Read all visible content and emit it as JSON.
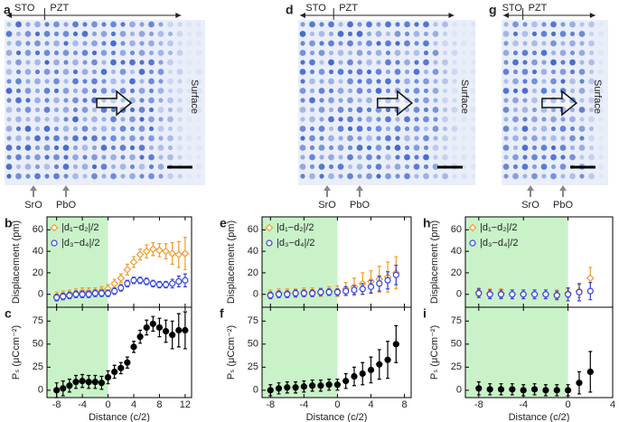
{
  "images": [
    {
      "letter": "a",
      "top_labels": [
        "STO",
        "PZT"
      ],
      "bottom_labels": [
        "SrO",
        "PbO"
      ],
      "surface": "Surface"
    },
    {
      "letter": "d",
      "top_labels": [
        "STO",
        "PZT"
      ],
      "bottom_labels": [
        "SrO",
        "PbO"
      ],
      "surface": "Surface"
    },
    {
      "letter": "g",
      "top_labels": [
        "STO",
        "PZT"
      ],
      "bottom_labels": [
        "SrO",
        "PbO"
      ],
      "surface": "Surface"
    }
  ],
  "chart_data": [
    {
      "type": "errorbar",
      "letter": "b",
      "ylabel": "Displacement (pm)",
      "highlight_to": 0,
      "highlight_color": "#c9f2c9",
      "x": [
        -8,
        -7,
        -6,
        -5,
        -4,
        -3,
        -2,
        -1,
        0,
        1,
        2,
        3,
        4,
        5,
        6,
        7,
        8,
        9,
        10,
        11,
        12
      ],
      "series": [
        {
          "name": "|d₁−d₂|/2",
          "color": "#f39a2b",
          "marker": "diamond",
          "filled": false,
          "values": [
            -2,
            -1,
            0,
            1,
            2,
            2,
            2,
            3,
            5,
            10,
            15,
            23,
            30,
            37,
            40,
            42,
            41,
            40,
            38,
            37,
            38
          ],
          "errors": [
            4,
            4,
            4,
            4,
            4,
            4,
            4,
            4,
            4,
            4,
            4,
            5,
            5,
            5,
            6,
            6,
            6,
            7,
            10,
            12,
            15
          ]
        },
        {
          "name": "|d₃−d₄|/2",
          "color": "#3344dd",
          "marker": "circle",
          "filled": false,
          "values": [
            -3,
            -2,
            -1,
            0,
            0,
            0,
            1,
            1,
            1,
            3,
            6,
            10,
            13,
            13,
            12,
            10,
            9,
            9,
            10,
            12,
            13
          ],
          "errors": [
            3,
            3,
            3,
            3,
            3,
            3,
            3,
            3,
            3,
            3,
            3,
            3,
            3,
            3,
            3,
            3,
            3,
            3,
            4,
            5,
            6
          ]
        }
      ],
      "xlim": [
        -9.5,
        13
      ],
      "xticks": [
        -8,
        -4,
        0,
        4,
        8,
        12
      ],
      "ylim": [
        -12,
        72
      ],
      "yticks": [
        0,
        20,
        40,
        60
      ]
    },
    {
      "type": "errorbar",
      "letter": "c",
      "ylabel": "Pₛ (μCcm⁻²)",
      "xlabel": "Distance (c/2)",
      "highlight_to": 0,
      "highlight_color": "#c9f2c9",
      "x": [
        -8,
        -7,
        -6,
        -5,
        -4,
        -3,
        -2,
        -1,
        0,
        1,
        2,
        3,
        4,
        5,
        6,
        7,
        8,
        9,
        10,
        11,
        12
      ],
      "series": [
        {
          "color": "#000000",
          "marker": "circle",
          "filled": true,
          "values": [
            0,
            2,
            5,
            9,
            10,
            9,
            9,
            8,
            14,
            20,
            24,
            30,
            47,
            58,
            68,
            72,
            68,
            64,
            60,
            65,
            65
          ],
          "errors": [
            8,
            8,
            7,
            7,
            7,
            7,
            7,
            7,
            7,
            7,
            6,
            6,
            6,
            7,
            8,
            8,
            10,
            12,
            15,
            18,
            20
          ]
        }
      ],
      "xlim": [
        -9.5,
        13
      ],
      "xticks": [
        -8,
        -4,
        0,
        4,
        8,
        12
      ],
      "ylim": [
        -8,
        90
      ],
      "yticks": [
        0,
        25,
        50,
        75
      ]
    },
    {
      "type": "errorbar",
      "letter": "e",
      "ylabel": "Displacement (pm)",
      "highlight_to": 0,
      "highlight_color": "#c9f2c9",
      "x": [
        -8,
        -7,
        -6,
        -5,
        -4,
        -3,
        -2,
        -1,
        0,
        1,
        2,
        3,
        4,
        5,
        6,
        7
      ],
      "series": [
        {
          "name": "|d₁−d₂|/2",
          "color": "#f39a2b",
          "marker": "diamond",
          "filled": false,
          "values": [
            0,
            1,
            1,
            1,
            2,
            2,
            2,
            3,
            3,
            5,
            7,
            10,
            12,
            14,
            16,
            20
          ],
          "errors": [
            4,
            4,
            4,
            4,
            4,
            4,
            4,
            4,
            5,
            6,
            8,
            10,
            10,
            12,
            14,
            15
          ]
        },
        {
          "name": "|d₃−d₄|/2",
          "color": "#3344dd",
          "marker": "circle",
          "filled": false,
          "values": [
            -1,
            0,
            0,
            1,
            1,
            1,
            2,
            2,
            2,
            3,
            4,
            5,
            7,
            10,
            13,
            18
          ],
          "errors": [
            3,
            3,
            3,
            3,
            3,
            3,
            3,
            3,
            3,
            4,
            4,
            5,
            6,
            7,
            8,
            9
          ]
        }
      ],
      "xlim": [
        -9,
        8.8
      ],
      "xticks": [
        -8,
        -4,
        0,
        4,
        8
      ],
      "ylim": [
        -12,
        72
      ],
      "yticks": [
        0,
        20,
        40,
        60
      ]
    },
    {
      "type": "errorbar",
      "letter": "f",
      "ylabel": "Pₛ (μCcm⁻²)",
      "xlabel": "Distance (c/2)",
      "highlight_to": 0,
      "highlight_color": "#c9f2c9",
      "x": [
        -8,
        -7,
        -6,
        -5,
        -4,
        -3,
        -2,
        -1,
        0,
        1,
        2,
        3,
        4,
        5,
        6,
        7
      ],
      "series": [
        {
          "color": "#000000",
          "marker": "circle",
          "filled": true,
          "values": [
            0,
            2,
            3,
            3,
            4,
            5,
            5,
            6,
            6,
            10,
            15,
            18,
            22,
            28,
            33,
            50
          ],
          "errors": [
            6,
            6,
            6,
            6,
            6,
            6,
            6,
            6,
            6,
            8,
            10,
            12,
            14,
            16,
            20,
            20
          ]
        }
      ],
      "xlim": [
        -9,
        8.8
      ],
      "xticks": [
        -8,
        -4,
        0,
        4,
        8
      ],
      "ylim": [
        -8,
        90
      ],
      "yticks": [
        0,
        25,
        50,
        75
      ]
    },
    {
      "type": "errorbar",
      "letter": "h",
      "ylabel": "Displacement (pm)",
      "highlight_to": 0,
      "highlight_color": "#c9f2c9",
      "x": [
        -8,
        -7,
        -6,
        -5,
        -4,
        -3,
        -2,
        -1,
        0,
        1,
        2
      ],
      "series": [
        {
          "name": "|d₁−d₂|/2",
          "color": "#f39a2b",
          "marker": "diamond",
          "filled": false,
          "values": [
            2,
            1,
            1,
            0,
            0,
            0,
            0,
            0,
            1,
            3,
            15
          ],
          "errors": [
            4,
            4,
            4,
            4,
            4,
            4,
            4,
            4,
            4,
            6,
            10
          ]
        },
        {
          "name": "|d₃−d₄|/2",
          "color": "#3344dd",
          "marker": "circle",
          "filled": false,
          "values": [
            1,
            0,
            0,
            0,
            0,
            0,
            0,
            -1,
            0,
            2,
            3
          ],
          "errors": [
            4,
            4,
            4,
            4,
            4,
            4,
            4,
            4,
            6,
            8,
            8
          ]
        }
      ],
      "xlim": [
        -9.2,
        4
      ],
      "xticks": [
        -8,
        -4,
        0,
        4
      ],
      "ylim": [
        -12,
        72
      ],
      "yticks": [
        0,
        20,
        40,
        60
      ]
    },
    {
      "type": "errorbar",
      "letter": "i",
      "ylabel": "Pₛ (μCcm⁻²)",
      "xlabel": "Distance (c/2)",
      "highlight_to": 0,
      "highlight_color": "#c9f2c9",
      "x": [
        -8,
        -7,
        -6,
        -5,
        -4,
        -3,
        -2,
        -1,
        0,
        1,
        2
      ],
      "series": [
        {
          "color": "#000000",
          "marker": "circle",
          "filled": true,
          "values": [
            2,
            1,
            1,
            1,
            0,
            1,
            0,
            0,
            0,
            8,
            20
          ],
          "errors": [
            7,
            6,
            6,
            6,
            6,
            6,
            6,
            6,
            6,
            12,
            22
          ]
        }
      ],
      "xlim": [
        -9.2,
        4
      ],
      "xticks": [
        -8,
        -4,
        0,
        4
      ],
      "ylim": [
        -8,
        90
      ],
      "yticks": [
        0,
        25,
        50,
        75
      ]
    }
  ]
}
